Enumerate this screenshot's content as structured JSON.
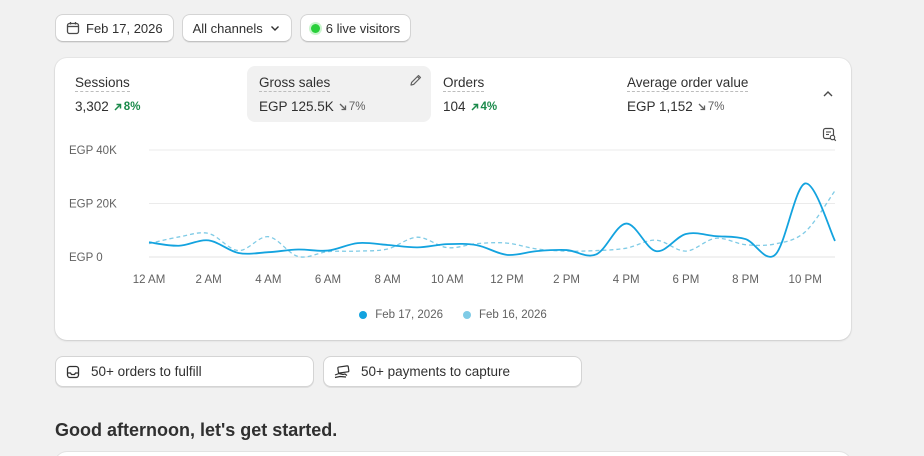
{
  "topbar": {
    "date_label": "Feb 17, 2026",
    "channels_label": "All channels",
    "live_label": "6 live visitors"
  },
  "metrics": [
    {
      "title": "Sessions",
      "value": "3,302",
      "delta": "8%",
      "direction": "up"
    },
    {
      "title": "Gross sales",
      "value": "EGP 125.5K",
      "delta": "7%",
      "direction": "down"
    },
    {
      "title": "Orders",
      "value": "104",
      "delta": "4%",
      "direction": "up"
    },
    {
      "title": "Average order value",
      "value": "EGP 1,152",
      "delta": "7%",
      "direction": "down"
    }
  ],
  "chart_data": {
    "type": "line",
    "ylabels": [
      "EGP 40K",
      "EGP 20K",
      "EGP 0"
    ],
    "ylim": [
      0,
      40000
    ],
    "xlabels": [
      "12 AM",
      "2 AM",
      "4 AM",
      "6 AM",
      "8 AM",
      "10 AM",
      "12 PM",
      "2 PM",
      "4 PM",
      "6 PM",
      "8 PM",
      "10 PM"
    ],
    "x": [
      "0:00",
      "1:00",
      "2:00",
      "3:00",
      "4:00",
      "5:00",
      "6:00",
      "7:00",
      "8:00",
      "9:00",
      "10:00",
      "11:00",
      "12:00",
      "13:00",
      "14:00",
      "15:00",
      "16:00",
      "17:00",
      "18:00",
      "19:00",
      "20:00",
      "21:00",
      "22:00",
      "23:00"
    ],
    "series": [
      {
        "name": "Feb 17, 2026",
        "color": "#13a3df",
        "style": "solid",
        "values": [
          5500,
          4200,
          6200,
          1500,
          1800,
          2800,
          2400,
          5200,
          4500,
          3600,
          4800,
          4400,
          800,
          2200,
          2600,
          1000,
          12500,
          2200,
          8600,
          7800,
          6700,
          900,
          27500,
          6000
        ]
      },
      {
        "name": "Feb 16, 2026",
        "color": "#7fcbe6",
        "style": "dashed",
        "values": [
          5000,
          7500,
          8800,
          2400,
          7600,
          200,
          2000,
          2200,
          3000,
          7400,
          3500,
          5000,
          5200,
          3000,
          2200,
          2400,
          3300,
          6300,
          2200,
          7000,
          4600,
          4900,
          9400,
          24800
        ]
      }
    ],
    "grid": true,
    "legend": "bottom"
  },
  "actions": {
    "fulfill_label": "50+ orders to fulfill",
    "capture_label": "50+ payments to capture"
  },
  "greeting": "Good afternoon, let's get started."
}
